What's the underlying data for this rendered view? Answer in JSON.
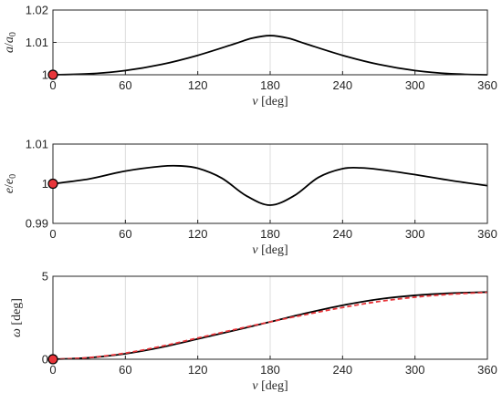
{
  "chart_data": [
    {
      "type": "line",
      "xlabel": "ν [deg]",
      "ylabel": "a/a0",
      "xlim": [
        0,
        360
      ],
      "ylim": [
        1,
        1.02
      ],
      "xticks": [
        "0",
        "60",
        "120",
        "180",
        "240",
        "300",
        "360"
      ],
      "yticks": [
        "1",
        "1.01",
        "1.02"
      ],
      "grid": true,
      "series": [
        {
          "color": "#000000",
          "style": "solid",
          "x": [
            0,
            30,
            60,
            90,
            120,
            150,
            165,
            180,
            195,
            210,
            240,
            270,
            300,
            330,
            360
          ],
          "y": [
            1.0,
            1.0003,
            1.0013,
            1.0032,
            1.006,
            1.0095,
            1.0113,
            1.0121,
            1.0113,
            1.0095,
            1.006,
            1.0032,
            1.0013,
            1.0003,
            1.0
          ]
        }
      ],
      "marker": {
        "x": 0,
        "y": 1.0,
        "color": "#e8353a"
      }
    },
    {
      "type": "line",
      "xlabel": "ν [deg]",
      "ylabel": "e/e0",
      "xlim": [
        0,
        360
      ],
      "ylim": [
        0.99,
        1.01
      ],
      "xticks": [
        "0",
        "60",
        "120",
        "180",
        "240",
        "300",
        "360"
      ],
      "yticks": [
        "0.99",
        "1",
        "1.01"
      ],
      "grid": true,
      "series": [
        {
          "color": "#000000",
          "style": "solid",
          "x": [
            0,
            30,
            60,
            90,
            105,
            120,
            140,
            160,
            180,
            200,
            220,
            240,
            255,
            270,
            300,
            330,
            360
          ],
          "y": [
            1.0,
            1.0012,
            1.0032,
            1.0044,
            1.0045,
            1.0039,
            1.0014,
            0.997,
            0.9946,
            0.997,
            1.0016,
            1.0038,
            1.004,
            1.0036,
            1.0023,
            1.0008,
            0.9995
          ]
        }
      ],
      "marker": {
        "x": 0,
        "y": 1.0,
        "color": "#e8353a"
      }
    },
    {
      "type": "line",
      "xlabel": "ν [deg]",
      "ylabel": "ω [deg]",
      "xlim": [
        0,
        360
      ],
      "ylim": [
        0,
        5
      ],
      "xticks": [
        "0",
        "60",
        "120",
        "180",
        "240",
        "300",
        "360"
      ],
      "yticks": [
        "0",
        "5"
      ],
      "grid": true,
      "series": [
        {
          "color": "#000000",
          "style": "solid",
          "x": [
            0,
            30,
            60,
            90,
            120,
            150,
            180,
            210,
            240,
            270,
            300,
            330,
            360
          ],
          "y": [
            0.0,
            0.09,
            0.33,
            0.72,
            1.22,
            1.73,
            2.25,
            2.78,
            3.25,
            3.62,
            3.85,
            3.98,
            4.05
          ]
        },
        {
          "color": "#e8353a",
          "style": "dashed",
          "x": [
            0,
            30,
            60,
            90,
            120,
            150,
            180,
            210,
            240,
            270,
            300,
            330,
            360
          ],
          "y": [
            0.0,
            0.1,
            0.37,
            0.78,
            1.28,
            1.78,
            2.25,
            2.7,
            3.12,
            3.48,
            3.74,
            3.92,
            4.03
          ]
        }
      ],
      "marker": {
        "x": 0,
        "y": 0.0,
        "color": "#e8353a"
      }
    }
  ]
}
